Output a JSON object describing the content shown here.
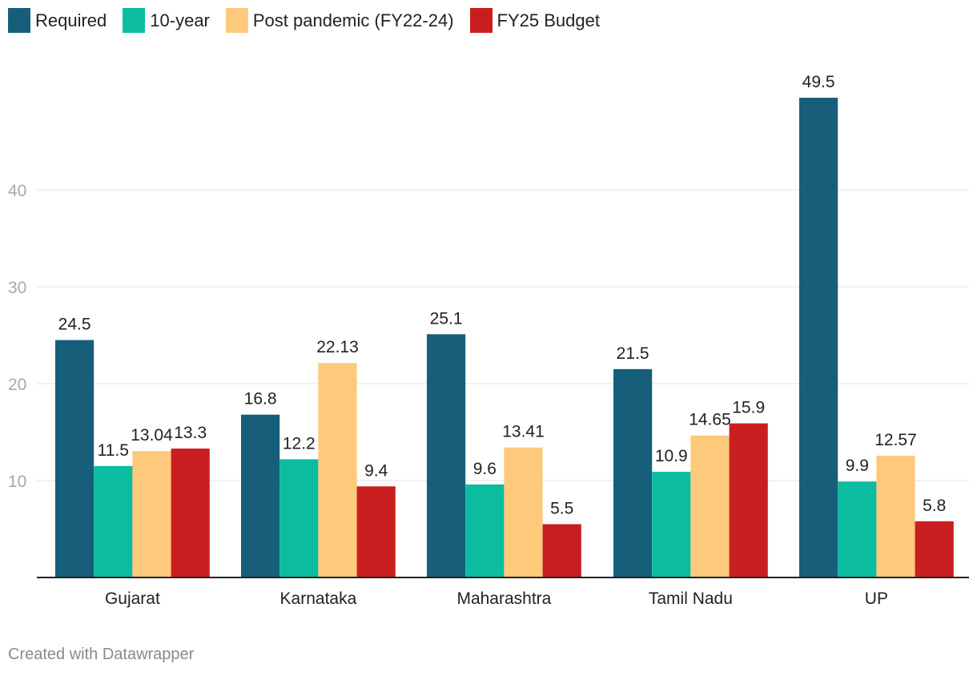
{
  "chart_data": {
    "type": "bar",
    "title": "",
    "xlabel": "",
    "ylabel": "",
    "ylim": [
      0,
      52
    ],
    "yticks": [
      10,
      20,
      30,
      40
    ],
    "grid": true,
    "legend_position": "top-left",
    "categories": [
      "Gujarat",
      "Karnataka",
      "Maharashtra",
      "Tamil Nadu",
      "UP"
    ],
    "series": [
      {
        "name": "Required",
        "color": "#175e7b",
        "values": [
          24.5,
          16.8,
          25.1,
          21.5,
          49.5
        ],
        "labels": [
          "24.5",
          "16.8",
          "25.1",
          "21.5",
          "49.5"
        ]
      },
      {
        "name": "10-year",
        "color": "#0cbca0",
        "values": [
          11.5,
          12.2,
          9.6,
          10.9,
          9.9
        ],
        "labels": [
          "11.5",
          "12.2",
          "9.6",
          "10.9",
          "9.9"
        ]
      },
      {
        "name": "Post pandemic (FY22-24)",
        "color": "#fdc97a",
        "values": [
          13.04,
          22.13,
          13.41,
          14.65,
          12.57
        ],
        "labels": [
          "13.04",
          "22.13",
          "13.41",
          "14.65",
          "12.57"
        ]
      },
      {
        "name": "FY25 Budget",
        "color": "#c91e1f",
        "values": [
          13.3,
          9.4,
          5.5,
          15.9,
          5.8
        ],
        "labels": [
          "13.3",
          "9.4",
          "5.5",
          "15.9",
          "5.8"
        ]
      }
    ]
  },
  "footer": {
    "credit": "Created with Datawrapper"
  }
}
